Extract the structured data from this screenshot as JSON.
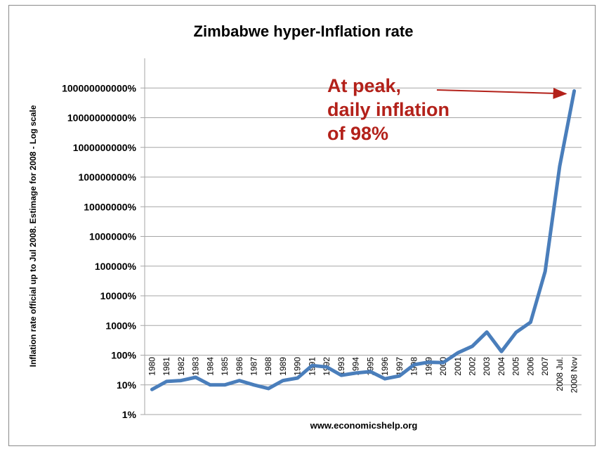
{
  "chart_data": {
    "type": "line",
    "title": "Zimbabwe hyper-Inflation rate",
    "ylabel": "Inflation rate official up to Jul 2008. Estimage for 2008 - Log scale",
    "xlabel": "",
    "source": "www.economicshelp.org",
    "y_scale": "log",
    "ylim": [
      1,
      1000000000000
    ],
    "grid": true,
    "y_ticks": [
      "1%",
      "10%",
      "100%",
      "1000%",
      "10000%",
      "100000%",
      "1000000%",
      "10000000%",
      "100000000%",
      "1000000000%",
      "10000000000%",
      "100000000000%"
    ],
    "categories": [
      "1980",
      "1981",
      "1982",
      "1983",
      "1984",
      "1985",
      "1986",
      "1987",
      "1988",
      "1989",
      "1990",
      "1991",
      "1992",
      "1993",
      "1994",
      "1995",
      "1996",
      "1997",
      "1998",
      "1999",
      "2000",
      "2001",
      "2002",
      "2003",
      "2004",
      "2005",
      "2006",
      "2007",
      "2008 Jul.",
      "2008 Nov"
    ],
    "series": [
      {
        "color": "#4a7ebb",
        "values": [
          7,
          13,
          14,
          18,
          10,
          10,
          14,
          10,
          7.5,
          14,
          17,
          45,
          40,
          21,
          25,
          28,
          16,
          20,
          48,
          58,
          56,
          120,
          200,
          600,
          133,
          585,
          1281,
          66212,
          231000000,
          79600000000
        ]
      }
    ],
    "annotations": [
      {
        "text_lines": [
          "At peak,",
          "daily inflation",
          "of 98%"
        ],
        "color": "#b3211a",
        "arrow_to_category": "2008 Nov"
      }
    ]
  }
}
